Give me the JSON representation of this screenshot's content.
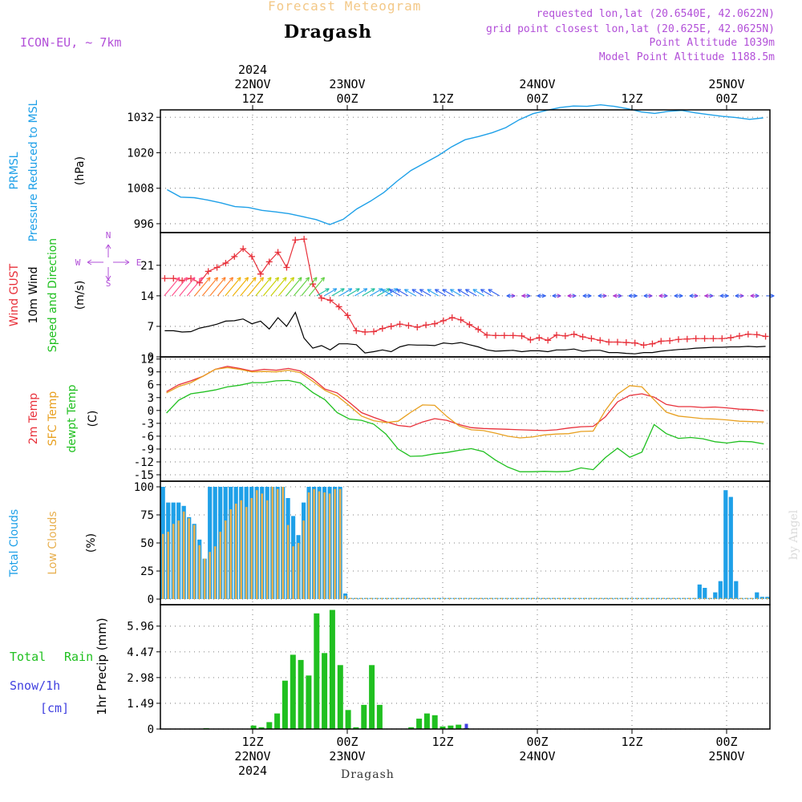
{
  "header": {
    "title_small": "Forecast Meteogram",
    "location": "Dragash",
    "model": "ICON-EU, ~ 7km",
    "requested": "requested lon,lat (20.6540E, 42.0622N)",
    "grid": "grid point closest lon,lat (20.625E, 42.0625N)",
    "point_alt": "Point Altitude 1039m",
    "model_alt": "Model Point Altitude 1188.5m"
  },
  "bottom_label": "Dragash",
  "watermark": "by Angel",
  "time_axis": {
    "start": "2024-11-22T03Z",
    "end": "2024-11-25T09Z",
    "top_labels": [
      {
        "lines": [
          "2024",
          "22NOV",
          "12Z"
        ]
      },
      {
        "lines": [
          "23NOV",
          "00Z"
        ]
      },
      {
        "lines": [
          "12Z"
        ]
      },
      {
        "lines": [
          "24NOV",
          "00Z"
        ]
      },
      {
        "lines": [
          "12Z"
        ]
      },
      {
        "lines": [
          "25NOV",
          "00Z"
        ]
      }
    ],
    "bottom_labels": [
      {
        "lines": [
          "12Z",
          "22NOV",
          "2024"
        ]
      },
      {
        "lines": [
          "00Z",
          "23NOV"
        ]
      },
      {
        "lines": [
          "12Z"
        ]
      },
      {
        "lines": [
          "00Z",
          "24NOV"
        ]
      },
      {
        "lines": [
          "12Z"
        ]
      },
      {
        "lines": [
          "00Z",
          "25NOV"
        ]
      }
    ]
  },
  "colors": {
    "pressure": "#1ea0e8",
    "gust": "#e8303a",
    "wind": "#000000",
    "temp2m": "#e8303a",
    "sfc": "#e8a020",
    "dewpt": "#20c020",
    "total_clouds": "#1ea0e8",
    "low_clouds": "#e8b050",
    "rain": "#20c020",
    "snow": "#4040e0",
    "title_green": "#20c020",
    "title_purple": "#b24fd8"
  },
  "chart_data": [
    {
      "type": "line",
      "name": "pressure",
      "side_labels": [
        "PRMSL",
        "Pressure Reduced to MSL",
        "(hPa)"
      ],
      "yticks": [
        996,
        1008,
        1020,
        1032
      ],
      "ylim": [
        993,
        1034.5
      ],
      "series": [
        {
          "name": "PRMSL",
          "values": [
            1007.5,
            1005,
            1004.8,
            1004,
            1003,
            1001.8,
            1001.5,
            1000.5,
            1000,
            999.4,
            998.4,
            997.4,
            995.7,
            997.5,
            1001,
            1003.6,
            1006.6,
            1010.5,
            1014,
            1016.5,
            1019,
            1022,
            1024.4,
            1025.5,
            1026.8,
            1028.5,
            1031.2,
            1033.2,
            1034.3,
            1035.3,
            1035.8,
            1035.7,
            1036.2,
            1035.7,
            1034.9,
            1033.8,
            1033.3,
            1034,
            1034.3,
            1033.5,
            1032.9,
            1032.3,
            1031.9,
            1031.3,
            1031.8
          ]
        }
      ]
    },
    {
      "type": "line",
      "name": "wind",
      "side_labels": [
        "Wind GUST",
        "10m Wind",
        "Speed and Direction",
        "(m/s)"
      ],
      "compass": [
        "N",
        "W",
        "E",
        "S"
      ],
      "yticks": [
        0,
        7,
        14,
        21
      ],
      "ylim": [
        0,
        28.5
      ],
      "series": [
        {
          "name": "Wind GUST",
          "values": [
            18,
            18,
            17.5,
            18,
            17,
            19.6,
            20.5,
            21.5,
            23,
            24.8,
            23,
            19,
            21.8,
            24,
            20.5,
            26.8,
            27,
            16.7,
            13.5,
            13,
            11.5,
            9.5,
            6,
            5.7,
            5.8,
            6.5,
            7,
            7.5,
            7.2,
            6.8,
            7.3,
            7.6,
            8.3,
            9,
            8.5,
            7.4,
            6.3,
            5,
            4.9,
            4.9,
            4.9,
            4.8,
            3.9,
            4.4,
            3.8,
            5,
            4.8,
            5.2,
            4.6,
            4.2,
            3.8,
            3.4,
            3.4,
            3.3,
            3.2,
            2.7,
            3,
            3.6,
            3.7,
            4,
            4.1,
            4.2,
            4.2,
            4.2,
            4.2,
            4.4,
            4.8,
            5.2,
            5.1,
            4.7
          ]
        },
        {
          "name": "10m Wind",
          "values": [
            6,
            6,
            5.7,
            5.8,
            6.6,
            7,
            7.5,
            8.2,
            8.3,
            8.7,
            7.6,
            8.2,
            6.4,
            9,
            7,
            10.2,
            4.3,
            2,
            2.6,
            1.6,
            3,
            3,
            2.8,
            0.9,
            1.2,
            1.6,
            1.2,
            2.3,
            2.8,
            2.7,
            2.7,
            2.6,
            3.2,
            3,
            3.3,
            2.8,
            2.3,
            1.6,
            1.3,
            1.4,
            1.5,
            1.2,
            1.4,
            1.4,
            1.2,
            1.6,
            1.6,
            1.8,
            1.3,
            1.5,
            1.5,
            1,
            1,
            0.8,
            0.7,
            1,
            1,
            1.3,
            1.5,
            1.7,
            1.8,
            2,
            2.1,
            2.2,
            2.2,
            2.3,
            2.3,
            2.4,
            2.3,
            2.4
          ]
        }
      ]
    },
    {
      "type": "line",
      "name": "temperature",
      "side_labels": [
        "2m Temp",
        "SFC Temp",
        "dewpt Temp",
        "(C)"
      ],
      "yticks": [
        -15,
        -12,
        -9,
        -6,
        -3,
        0,
        3,
        6,
        9,
        12
      ],
      "ylim": [
        -16.5,
        12.5
      ],
      "series": [
        {
          "name": "2m Temp",
          "values": [
            4.4,
            6,
            6.9,
            8,
            9.6,
            10.3,
            9.8,
            9.2,
            9.6,
            9.4,
            9.8,
            9.2,
            7.4,
            5,
            4.1,
            1.9,
            -0.5,
            -1.6,
            -2.6,
            -3.5,
            -3.8,
            -2.7,
            -1.9,
            -2.3,
            -3.3,
            -4,
            -4.2,
            -4.3,
            -4.4,
            -4.5,
            -4.6,
            -4.7,
            -4.5,
            -4.1,
            -3.8,
            -3.7,
            -1.5,
            2,
            3.5,
            3.9,
            3.1,
            1.4,
            0.9,
            0.9,
            0.7,
            0.8,
            0.6,
            0.3,
            0.2,
            -0.1
          ]
        },
        {
          "name": "SFC Temp",
          "values": [
            4.1,
            5.6,
            6.5,
            8,
            9.6,
            10,
            9.6,
            9,
            9.1,
            9,
            9.4,
            8.8,
            6.8,
            4.7,
            3.4,
            1.1,
            -1.3,
            -2.4,
            -2.8,
            -2.5,
            -0.5,
            1.3,
            1.2,
            -1.4,
            -3.6,
            -4.5,
            -4.7,
            -5.3,
            -6,
            -6.4,
            -6.2,
            -5.7,
            -5.5,
            -5.4,
            -4.9,
            -4.8,
            0,
            3.8,
            5.8,
            5.5,
            2.5,
            -0.4,
            -1.3,
            -1.6,
            -1.9,
            -2,
            -2.2,
            -2.5,
            -2.6,
            -2.7
          ]
        },
        {
          "name": "dewpt Temp",
          "values": [
            -0.6,
            2.4,
            3.9,
            4.3,
            4.8,
            5.5,
            5.9,
            6.5,
            6.5,
            6.9,
            7,
            6.4,
            4.2,
            2.5,
            -0.5,
            -2,
            -2.3,
            -3.2,
            -5.5,
            -9,
            -10.7,
            -10.6,
            -10.1,
            -9.8,
            -9.3,
            -8.9,
            -9.6,
            -11.6,
            -13.2,
            -14.3,
            -14.3,
            -14.2,
            -14.3,
            -14.2,
            -13.4,
            -13.8,
            -11,
            -8.8,
            -10.9,
            -9.7,
            -3.3,
            -5.4,
            -6.5,
            -6.3,
            -6.6,
            -7.3,
            -7.6,
            -7.2,
            -7.3,
            -7.8
          ]
        }
      ]
    },
    {
      "type": "bar",
      "name": "clouds",
      "side_labels": [
        "Total Clouds",
        "Low Clouds",
        "(%)"
      ],
      "yticks": [
        0,
        25,
        50,
        75,
        100
      ],
      "ylim": [
        -5,
        105
      ],
      "series": [
        {
          "name": "Total Clouds",
          "values": [
            100,
            86,
            86,
            86,
            83,
            73,
            67,
            53,
            36,
            100,
            100,
            100,
            100,
            100,
            100,
            100,
            100,
            100,
            100,
            100,
            100,
            100,
            100,
            100,
            90,
            74,
            57,
            86,
            100,
            100,
            100,
            100,
            100,
            100,
            100,
            5,
            1,
            1,
            1,
            1,
            1,
            1,
            1,
            1,
            1,
            1,
            1,
            1,
            1,
            1,
            1,
            1,
            1,
            1,
            1,
            1,
            1,
            1,
            1,
            1,
            1,
            1,
            1,
            1,
            1,
            1,
            1,
            1,
            1,
            1,
            1,
            1,
            1,
            1,
            1,
            1,
            1,
            1,
            1,
            1,
            1,
            1,
            1,
            1,
            1,
            1,
            1,
            1,
            1,
            1,
            1,
            1,
            1,
            1,
            1,
            1,
            1,
            1,
            1,
            1,
            1,
            1,
            1,
            13,
            10,
            1,
            6,
            16,
            97,
            91,
            16,
            1,
            1,
            1,
            6,
            2,
            2
          ]
        },
        {
          "name": "Low Clouds",
          "values": [
            58,
            60,
            67,
            70,
            78,
            72,
            66,
            48,
            36,
            42,
            47,
            60,
            70,
            80,
            85,
            88,
            82,
            90,
            97,
            94,
            88,
            100,
            98,
            100,
            66,
            47,
            50,
            70,
            95,
            98,
            96,
            95,
            94,
            98,
            98,
            3,
            1,
            1,
            1,
            1,
            1,
            1,
            1,
            1,
            1,
            1,
            1,
            1,
            1,
            1,
            1,
            1,
            1,
            1,
            1,
            1,
            1,
            1,
            1,
            1,
            1,
            1,
            1,
            1,
            1,
            1,
            1,
            1,
            1,
            1,
            1,
            1,
            1,
            1,
            1,
            1,
            1,
            1,
            1,
            1,
            1,
            1,
            1,
            1,
            1,
            1,
            1,
            1,
            1,
            1,
            1,
            1,
            1,
            1,
            1,
            1,
            1,
            1,
            1,
            1,
            1,
            1,
            1,
            1,
            1,
            1,
            1,
            1,
            1,
            1,
            1,
            1,
            1,
            1,
            1,
            1,
            1
          ]
        }
      ]
    },
    {
      "type": "bar",
      "name": "precip",
      "side_labels": [
        "Total",
        "Rain",
        "Snow/1h",
        "[cm]",
        "1hr Precip (mm)"
      ],
      "yticks": [
        0,
        1.49,
        2.98,
        4.47,
        5.96
      ],
      "ylim": [
        0,
        7.2
      ],
      "series": [
        {
          "name": "Total Rain",
          "values": [
            0,
            0,
            0,
            0,
            0,
            0.05,
            0,
            0,
            0,
            0,
            0,
            0.2,
            0.1,
            0.4,
            0.9,
            2.8,
            4.3,
            4,
            3.1,
            6.7,
            4.4,
            6.9,
            3.7,
            1.1,
            0.1,
            1.4,
            3.7,
            1.4,
            0,
            0,
            0,
            0.1,
            0.6,
            0.9,
            0.8,
            0.15,
            0.2,
            0.25,
            0.05
          ]
        },
        {
          "name": "Snow/1h",
          "values": [
            0,
            0,
            0,
            0,
            0,
            0,
            0,
            0,
            0,
            0,
            0,
            0,
            0,
            0,
            0,
            0,
            0,
            0,
            0,
            0,
            0,
            0,
            0,
            0,
            0,
            0,
            0,
            0,
            0,
            0,
            0,
            0,
            0,
            0,
            0,
            0,
            0,
            0,
            0.3
          ]
        }
      ]
    }
  ]
}
